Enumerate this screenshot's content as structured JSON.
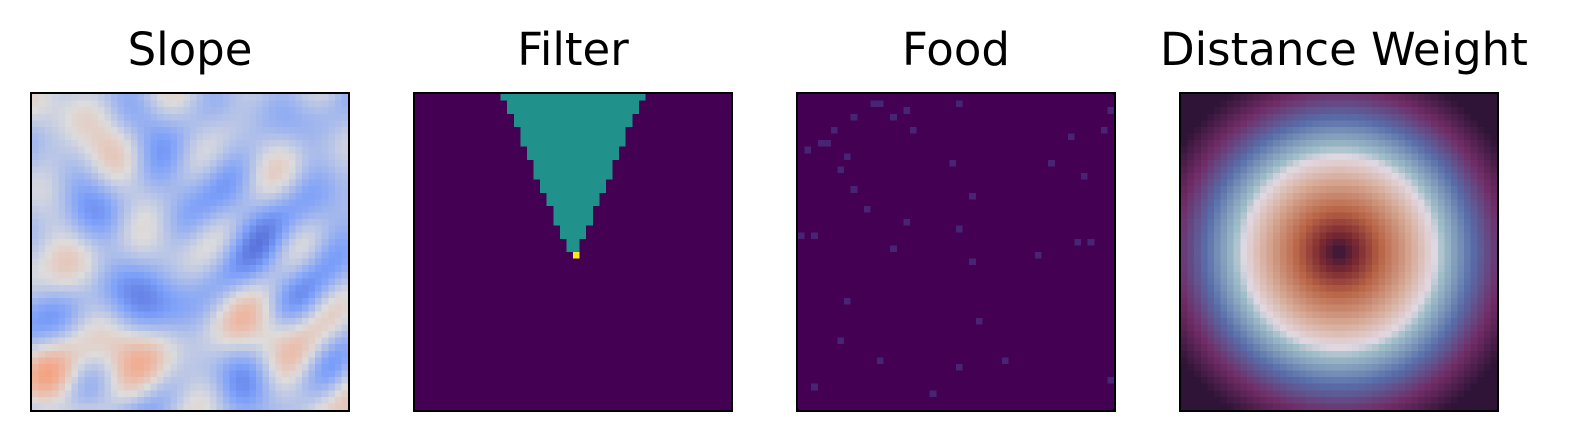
{
  "figure": {
    "panels": [
      {
        "title": "Slope",
        "colormap": "coolwarm"
      },
      {
        "title": "Filter",
        "colormap": "viridis"
      },
      {
        "title": "Food",
        "colormap": "viridis"
      },
      {
        "title": "Distance Weight",
        "colormap": "twilight_shifted"
      }
    ]
  },
  "chart_data": [
    {
      "type": "heatmap",
      "title": "Slope",
      "grid_size": [
        48,
        48
      ],
      "colormap": "coolwarm",
      "value_range": [
        0,
        1
      ],
      "axes_ticks": "none",
      "description_of_values": "noisy field, mostly low (blue) values with streaks of higher (pale/red) values on the left and bottom-left"
    },
    {
      "type": "heatmap",
      "title": "Filter",
      "grid_size": [
        48,
        48
      ],
      "colormap": "viridis",
      "value_range": [
        0,
        1
      ],
      "axes_ticks": "none",
      "background_value": 0,
      "cone": {
        "apex_col": 24,
        "apex_row": 24,
        "top_row": 0,
        "top_half_width": 10,
        "value": 0.5
      },
      "apex_value": 1
    },
    {
      "type": "heatmap",
      "title": "Food",
      "grid_size": [
        48,
        48
      ],
      "colormap": "viridis",
      "value_range": [
        0,
        1
      ],
      "axes_ticks": "none",
      "background_value": 0,
      "sparse_points": [
        [
          1,
          11
        ],
        [
          1,
          12
        ],
        [
          2,
          16
        ],
        [
          1,
          24
        ],
        [
          2,
          47
        ],
        [
          3,
          8
        ],
        [
          3,
          14
        ],
        [
          5,
          5
        ],
        [
          5,
          17
        ],
        [
          5,
          46
        ],
        [
          6,
          41
        ],
        [
          7,
          3
        ],
        [
          7,
          4
        ],
        [
          8,
          1
        ],
        [
          9,
          7
        ],
        [
          10,
          23
        ],
        [
          10,
          38
        ],
        [
          11,
          6
        ],
        [
          12,
          43
        ],
        [
          14,
          8
        ],
        [
          15,
          26
        ],
        [
          17,
          10
        ],
        [
          19,
          16
        ],
        [
          20,
          24
        ],
        [
          21,
          0
        ],
        [
          21,
          2
        ],
        [
          22,
          42
        ],
        [
          22,
          44
        ],
        [
          23,
          14
        ],
        [
          24,
          36
        ],
        [
          25,
          26
        ],
        [
          31,
          7
        ],
        [
          34,
          27
        ],
        [
          37,
          6
        ],
        [
          40,
          12
        ],
        [
          40,
          31
        ],
        [
          41,
          24
        ],
        [
          43,
          47
        ],
        [
          44,
          2
        ],
        [
          45,
          20
        ]
      ],
      "point_value": 0.12
    },
    {
      "type": "heatmap",
      "title": "Distance Weight",
      "grid_size": [
        48,
        48
      ],
      "colormap": "twilight_shifted",
      "value_range": [
        0,
        1
      ],
      "axes_ticks": "none",
      "description_of_values": "radial function of distance from center; value 0 at the corners and at the center, increasing outward toward a ring at about 0.6 of the half-width"
    }
  ]
}
